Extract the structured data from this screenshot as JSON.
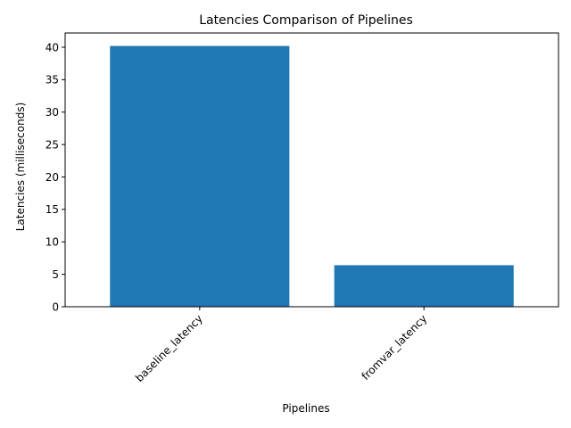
{
  "chart_data": {
    "type": "bar",
    "title": "Latencies Comparison of Pipelines",
    "xlabel": "Pipelines",
    "ylabel": "Latencies (milliseconds)",
    "categories": [
      "baseline_latency",
      "fromvar_latency"
    ],
    "values": [
      40.2,
      6.4
    ],
    "ylim": [
      0,
      42.2
    ],
    "yticks": [
      0,
      5,
      10,
      15,
      20,
      25,
      30,
      35,
      40
    ],
    "grid": false,
    "legend": "none",
    "colors": {
      "bar": "#1f77b4",
      "axis": "#000000"
    }
  }
}
